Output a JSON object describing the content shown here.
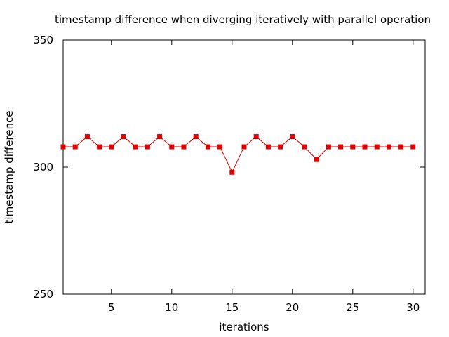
{
  "chart_data": {
    "type": "line",
    "title": "timestamp difference when diverging iteratively with parallel operation",
    "xlabel": "iterations",
    "ylabel": "timestamp difference",
    "xlim": [
      1,
      31
    ],
    "ylim": [
      250,
      350
    ],
    "x_ticks": [
      5,
      10,
      15,
      20,
      25,
      30
    ],
    "y_ticks": [
      250,
      300,
      350
    ],
    "grid": false,
    "legend": "none",
    "series_color": "#e00000",
    "marker": "square",
    "series": [
      {
        "x": [
          1,
          2,
          3,
          4,
          5,
          6,
          7,
          8,
          9,
          10,
          11,
          12,
          13,
          14,
          15,
          16,
          17,
          18,
          19,
          20,
          21,
          22,
          23,
          24,
          25,
          26,
          27,
          28,
          29,
          30
        ],
        "values": [
          308,
          308,
          312,
          308,
          308,
          312,
          308,
          308,
          312,
          308,
          308,
          312,
          308,
          308,
          298,
          308,
          312,
          308,
          308,
          312,
          308,
          303,
          308,
          308,
          308,
          308,
          308,
          308,
          308,
          308
        ]
      }
    ]
  }
}
